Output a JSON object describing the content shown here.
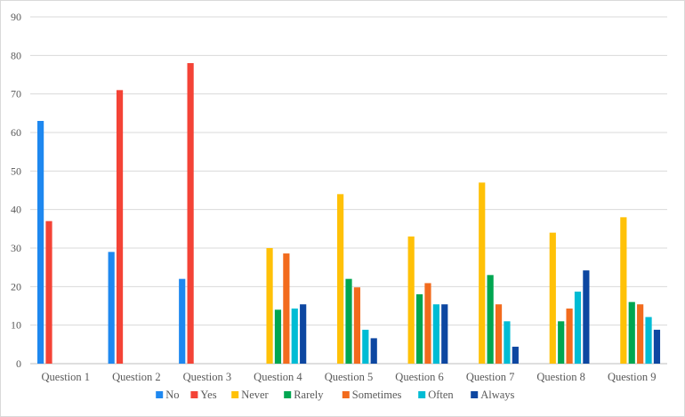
{
  "chart_data": {
    "type": "bar",
    "title": "",
    "xlabel": "",
    "ylabel": "",
    "ylim": [
      0,
      90
    ],
    "yticks": [
      0,
      10,
      20,
      30,
      40,
      50,
      60,
      70,
      80,
      90
    ],
    "grid": true,
    "legend": "bottom",
    "categories": [
      "Question 1",
      "Question 2",
      "Question 3",
      "Question 4",
      "Question 5",
      "Question 6",
      "Question 7",
      "Question 8",
      "Question 9"
    ],
    "series": [
      {
        "name": "No",
        "color": "#1e88f0",
        "values": [
          63,
          29,
          22,
          null,
          null,
          null,
          null,
          null,
          null
        ]
      },
      {
        "name": "Yes",
        "color": "#f44336",
        "values": [
          37,
          71,
          78,
          null,
          null,
          null,
          null,
          null,
          null
        ]
      },
      {
        "name": "Never",
        "color": "#ffc107",
        "values": [
          null,
          null,
          null,
          30,
          44,
          33,
          47,
          34,
          38
        ]
      },
      {
        "name": "Rarely",
        "color": "#00a651",
        "values": [
          null,
          null,
          null,
          14,
          22,
          18,
          23,
          11,
          16
        ]
      },
      {
        "name": "Sometimes",
        "color": "#f26b1d",
        "values": [
          null,
          null,
          null,
          28.6,
          19.8,
          20.9,
          15.4,
          14.3,
          15.4
        ]
      },
      {
        "name": "Often",
        "color": "#00bcd4",
        "values": [
          null,
          null,
          null,
          14.3,
          8.8,
          15.4,
          11,
          18.7,
          12.1
        ]
      },
      {
        "name": "Always",
        "color": "#0d47a1",
        "values": [
          null,
          null,
          null,
          15.4,
          6.6,
          15.4,
          4.4,
          24.2,
          8.8
        ]
      }
    ]
  }
}
